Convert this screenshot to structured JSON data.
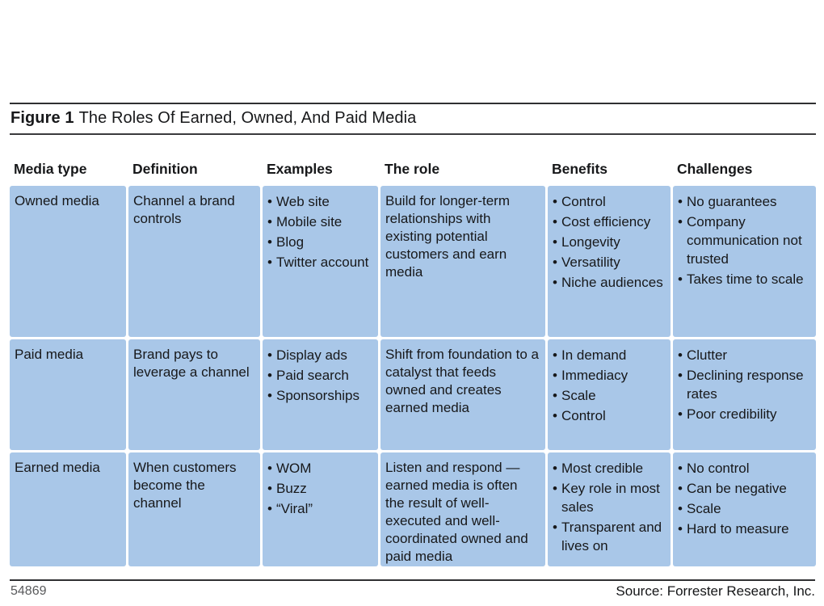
{
  "figure": {
    "label": "Figure 1",
    "title": "The Roles Of Earned, Owned, And Paid Media"
  },
  "table": {
    "headers": [
      "Media type",
      "Definition",
      "Examples",
      "The role",
      "Benefits",
      "Challenges"
    ],
    "rows": [
      {
        "media_type": "Owned media",
        "definition": "Channel a brand controls",
        "examples": [
          "Web site",
          "Mobile site",
          "Blog",
          "Twitter account"
        ],
        "role": "Build for longer-term relationships with existing potential customers and earn media",
        "benefits": [
          "Control",
          "Cost efficiency",
          "Longevity",
          "Versatility",
          "Niche audiences"
        ],
        "challenges": [
          "No guarantees",
          "Company communication not trusted",
          "Takes time to scale"
        ]
      },
      {
        "media_type": "Paid media",
        "definition": "Brand pays to leverage a channel",
        "examples": [
          "Display ads",
          "Paid search",
          "Sponsorships"
        ],
        "role": "Shift from foundation to a catalyst that feeds owned and creates earned media",
        "benefits": [
          "In demand",
          "Immediacy",
          "Scale",
          "Control"
        ],
        "challenges": [
          "Clutter",
          "Declining response rates",
          "Poor credibility"
        ]
      },
      {
        "media_type": "Earned media",
        "definition": "When customers become the channel",
        "examples": [
          "WOM",
          "Buzz",
          "“Viral”"
        ],
        "role": "Listen and respond — earned media is often the result of well-executed and well-coordinated owned and paid media",
        "benefits": [
          "Most credible",
          "Key role in most sales",
          "Transparent and lives on"
        ],
        "challenges": [
          "No control",
          "Can be negative",
          "Scale",
          "Hard to measure"
        ]
      }
    ]
  },
  "footer": {
    "figure_number": "54869",
    "source": "Source: Forrester Research, Inc."
  },
  "colors": {
    "cell_blue": "#a9c7e8",
    "rule_dark": "#2f3032",
    "text": "#17181a",
    "footer_gray": "#595a5c"
  }
}
